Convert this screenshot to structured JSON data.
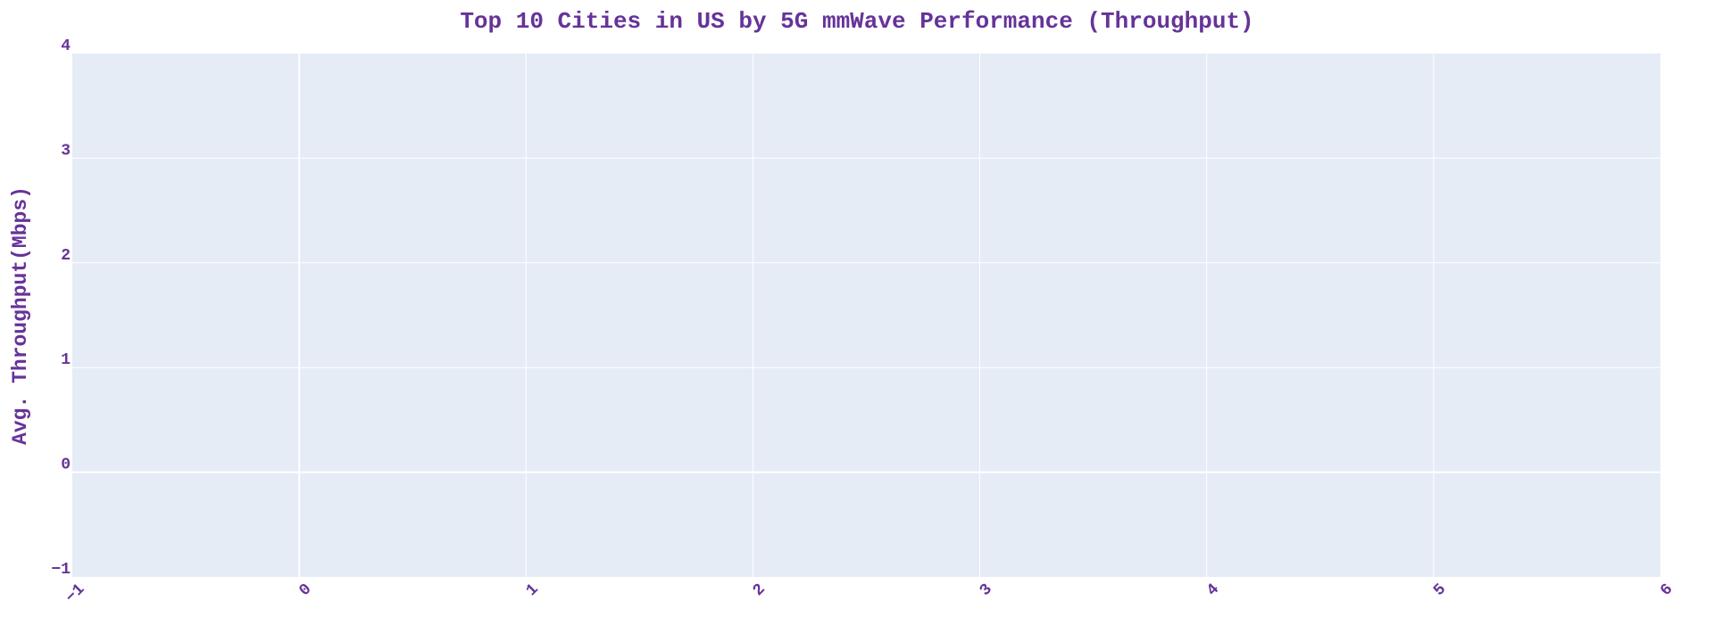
{
  "chart_data": {
    "type": "bar",
    "title": "Top 10 Cities in US by 5G mmWave Performance (Throughput)",
    "xlabel": "",
    "ylabel": "Avg. Throughput(Mbps)",
    "xlim": [
      -1,
      6
    ],
    "ylim": [
      -1,
      4
    ],
    "x_ticks": [
      "−1",
      "0",
      "1",
      "2",
      "3",
      "4",
      "5",
      "6"
    ],
    "y_ticks": [
      "−1",
      "0",
      "1",
      "2",
      "3",
      "4"
    ],
    "categories": [],
    "values": [],
    "grid": true,
    "legend": "none",
    "colors": {
      "plot_background": "#e5ecf6",
      "gridline": "#ffffff",
      "text": "#663399"
    }
  }
}
